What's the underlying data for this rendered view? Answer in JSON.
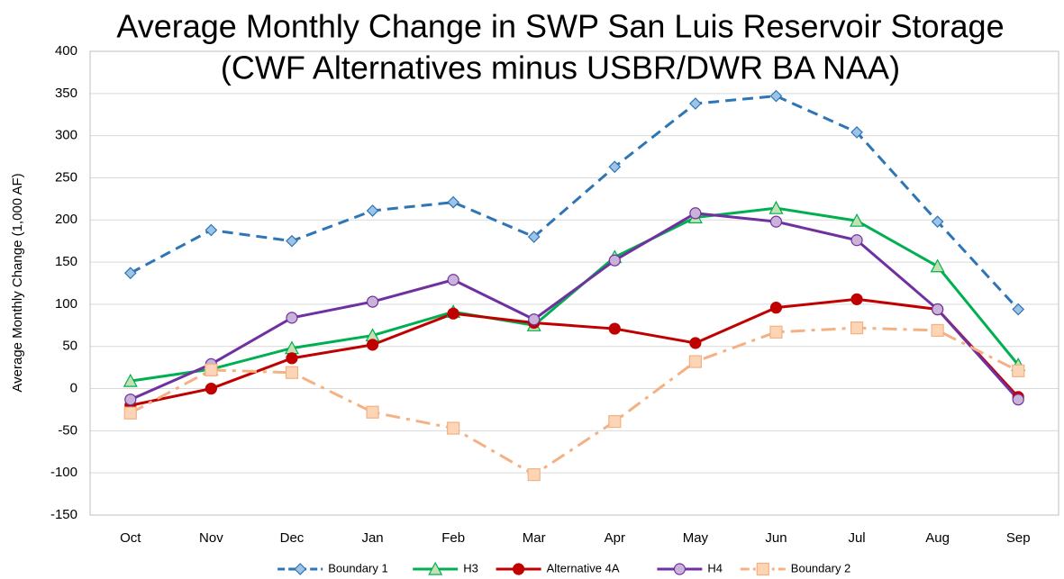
{
  "chart_data": {
    "type": "line",
    "title": "Average Monthly Change in SWP San Luis Reservoir Storage",
    "subtitle": "(CWF Alternatives minus USBR/DWR BA NAA)",
    "y_label": "Average Monthly Change (1,000 AF)",
    "categories": [
      "Oct",
      "Nov",
      "Dec",
      "Jan",
      "Feb",
      "Mar",
      "Apr",
      "May",
      "Jun",
      "Jul",
      "Aug",
      "Sep"
    ],
    "series": [
      {
        "name": "Boundary 1",
        "color": "#2e75b6",
        "marker_fill": "#9dc3e6",
        "marker": "diamond",
        "dash": "dash",
        "values": [
          137,
          188,
          175,
          211,
          221,
          180,
          263,
          338,
          347,
          304,
          198,
          94
        ]
      },
      {
        "name": "H3",
        "color": "#00b050",
        "marker_fill": "#c5e0b4",
        "marker": "triangle",
        "dash": "solid",
        "values": [
          9,
          23,
          48,
          63,
          91,
          75,
          156,
          203,
          214,
          199,
          145,
          28
        ]
      },
      {
        "name": "Alternative 4A",
        "color": "#c00000",
        "marker_fill": "#c00000",
        "marker": "circle",
        "dash": "solid",
        "values": [
          -20,
          0,
          36,
          52,
          89,
          78,
          71,
          54,
          96,
          106,
          94,
          -10
        ]
      },
      {
        "name": "H4",
        "color": "#7030a0",
        "marker_fill": "#c9b3d9",
        "marker": "circle",
        "dash": "solid",
        "values": [
          -13,
          29,
          84,
          103,
          129,
          82,
          152,
          208,
          198,
          176,
          94,
          -13
        ]
      },
      {
        "name": "Boundary 2",
        "color": "#f4b183",
        "marker_fill": "#fbd5b5",
        "marker": "square",
        "dash": "dashdot",
        "values": [
          -29,
          22,
          19,
          -28,
          -47,
          -102,
          -39,
          32,
          67,
          72,
          69,
          21
        ]
      }
    ],
    "ylim": [
      -150,
      400
    ],
    "yticks": [
      -150,
      -100,
      -50,
      0,
      50,
      100,
      150,
      200,
      250,
      300,
      350,
      400
    ],
    "grid": true,
    "legend": "bottom"
  }
}
